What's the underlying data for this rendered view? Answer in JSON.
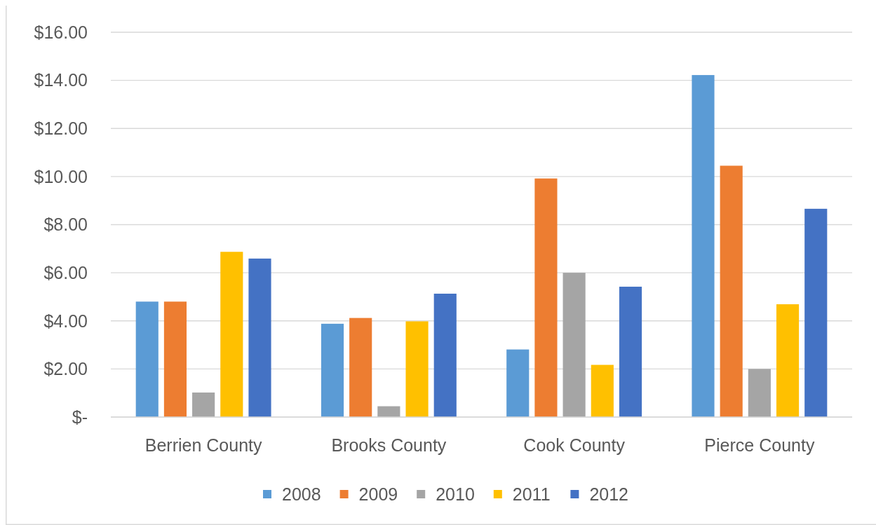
{
  "chart_data": {
    "type": "bar",
    "categories": [
      "Berrien County",
      "Brooks County",
      "Cook County",
      "Pierce County"
    ],
    "series": [
      {
        "name": "2008",
        "color": "#5b9bd5",
        "values": [
          4.8,
          3.88,
          2.81,
          14.22
        ]
      },
      {
        "name": "2009",
        "color": "#ed7d31",
        "values": [
          4.8,
          4.12,
          9.92,
          10.45
        ]
      },
      {
        "name": "2010",
        "color": "#a5a5a5",
        "values": [
          1.02,
          0.45,
          6.0,
          2.0
        ]
      },
      {
        "name": "2011",
        "color": "#ffc000",
        "values": [
          6.87,
          3.98,
          2.17,
          4.69
        ]
      },
      {
        "name": "2012",
        "color": "#4472c4",
        "values": [
          6.59,
          5.13,
          5.42,
          8.66
        ]
      }
    ],
    "ylim": [
      0,
      16
    ],
    "yticks": [
      {
        "value": 0,
        "label": "$-"
      },
      {
        "value": 2,
        "label": "$2.00"
      },
      {
        "value": 4,
        "label": "$4.00"
      },
      {
        "value": 6,
        "label": "$6.00"
      },
      {
        "value": 8,
        "label": "$8.00"
      },
      {
        "value": 10,
        "label": "$10.00"
      },
      {
        "value": 12,
        "label": "$12.00"
      },
      {
        "value": 14,
        "label": "$14.00"
      },
      {
        "value": 16,
        "label": "$16.00"
      }
    ],
    "grid": "y",
    "legend": "bottom"
  }
}
